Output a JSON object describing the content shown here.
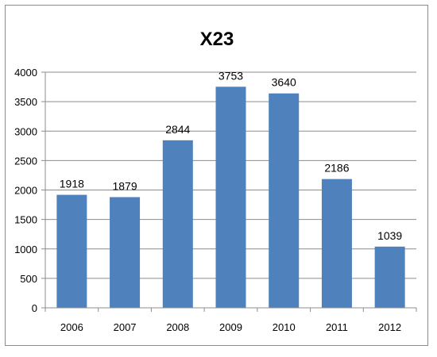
{
  "chart_data": {
    "type": "bar",
    "title": "X23",
    "categories": [
      "2006",
      "2007",
      "2008",
      "2009",
      "2010",
      "2011",
      "2012"
    ],
    "values": [
      1918,
      1879,
      2844,
      3753,
      3640,
      2186,
      1039
    ],
    "data_labels": [
      "1918",
      "1879",
      "2844",
      "3753",
      "3640",
      "2186",
      "1039"
    ],
    "ylim": [
      0,
      4000
    ],
    "yticks": [
      "0",
      "500",
      "1000",
      "1500",
      "2000",
      "2500",
      "3000",
      "3500",
      "4000"
    ],
    "grid": "horizontal",
    "legend": "none",
    "bar_color": "#4f81bd",
    "grid_color": "#8c8c8c"
  }
}
